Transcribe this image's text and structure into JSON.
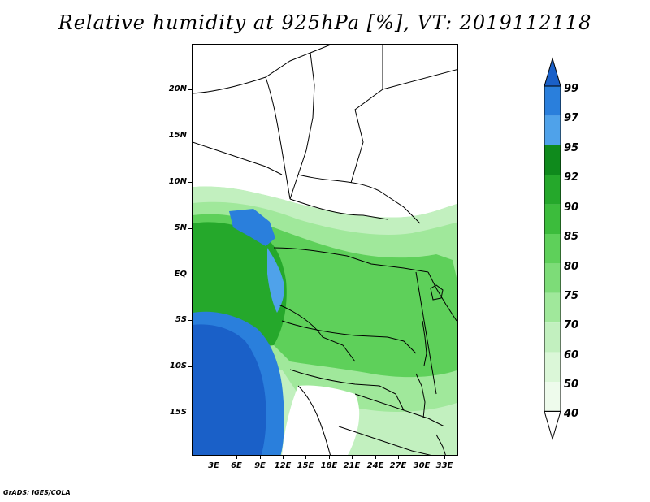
{
  "title": "Relative humidity at 925hPa [%], VT: 2019112118",
  "map": {
    "lat_labels": [
      "20N",
      "15N",
      "10N",
      "5N",
      "EQ",
      "5S",
      "10S",
      "15S"
    ],
    "lon_labels": [
      "3E",
      "6E",
      "9E",
      "12E",
      "15E",
      "18E",
      "21E",
      "24E",
      "27E",
      "30E",
      "33E"
    ]
  },
  "colorbar": {
    "levels": [
      "99",
      "97",
      "95",
      "92",
      "90",
      "85",
      "80",
      "75",
      "70",
      "60",
      "50",
      "40"
    ],
    "colors": {
      "99": "#1a60c8",
      "97": "#2a7fdc",
      "95": "#4fa2ea",
      "92": "#0f8a1c",
      "90": "#25a82b",
      "85": "#3cbc3c",
      "80": "#5ed05a",
      "75": "#7ddc78",
      "70": "#a0e89b",
      "60": "#c2f0bf",
      "50": "#dbf7d8",
      "40": "#eefbec"
    }
  },
  "credit": "GrADS: IGES/COLA"
}
